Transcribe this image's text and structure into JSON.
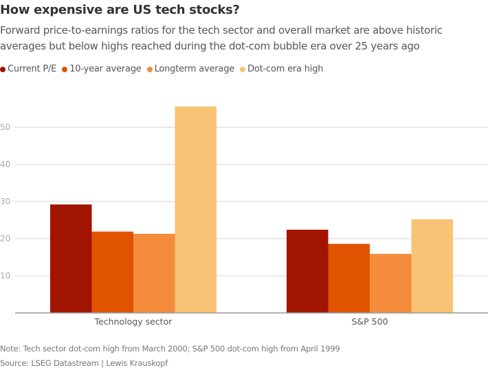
{
  "chart_data": {
    "type": "bar",
    "title": "How expensive are US tech stocks?",
    "subtitle": "Forward price-to-earnings ratios for the tech sector and overall market are above historic averages but below highs reached during the dot-com bubble era over 25 years ago",
    "categories": [
      "Technology sector",
      "S&P 500"
    ],
    "series": [
      {
        "name": "Current P/E",
        "color": "#a01400",
        "values": [
          29.2,
          22.4
        ]
      },
      {
        "name": "10-year average",
        "color": "#e05400",
        "values": [
          21.9,
          18.6
        ]
      },
      {
        "name": "Longterm average",
        "color": "#f58c3c",
        "values": [
          21.3,
          15.9
        ]
      },
      {
        "name": "Dot-com era high",
        "color": "#f8c374",
        "values": [
          55.6,
          25.2
        ]
      }
    ],
    "xlabel": "",
    "ylabel": "",
    "ylim": [
      0,
      57
    ],
    "yticks": [
      10,
      20,
      30,
      40,
      50
    ],
    "grid": true,
    "legend_position": "top-left",
    "note": "Note: Tech sector dot-com high from March 2000; S&P 500 dot-com high from April 1999",
    "source": "Source: LSEG Datastream | Lewis Krauskopf"
  }
}
